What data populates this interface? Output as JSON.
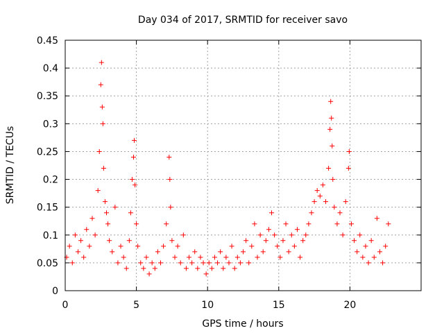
{
  "chart_data": {
    "type": "scatter",
    "title": "Day 034 of 2017, SRMTID for receiver savo",
    "xlabel": "GPS time / hours",
    "ylabel": "SRMTID / TECUs",
    "xlim": [
      0,
      25
    ],
    "ylim": [
      0,
      0.45
    ],
    "xticks": [
      0,
      5,
      10,
      15,
      20
    ],
    "xtick_labels": [
      "0",
      "5",
      "10",
      "15",
      "20"
    ],
    "yticks": [
      0,
      0.05,
      0.1,
      0.15,
      0.2,
      0.25,
      0.3,
      0.35,
      0.4,
      0.45
    ],
    "ytick_labels": [
      "0",
      "0.05",
      "0.1",
      "0.15",
      "0.2",
      "0.25",
      "0.3",
      "0.35",
      "0.4",
      "0.45"
    ],
    "grid": true,
    "marker": "+",
    "color": "#ff0000",
    "series": [
      {
        "name": "savo",
        "x": [
          0.1,
          0.3,
          0.5,
          0.7,
          0.9,
          1.1,
          1.3,
          1.5,
          1.7,
          1.9,
          2.1,
          2.3,
          2.4,
          2.5,
          2.55,
          2.6,
          2.65,
          2.7,
          2.8,
          2.9,
          3.0,
          3.1,
          3.3,
          3.5,
          3.7,
          3.9,
          4.1,
          4.3,
          4.5,
          4.6,
          4.7,
          4.8,
          4.85,
          4.9,
          5.0,
          5.1,
          5.3,
          5.5,
          5.7,
          5.9,
          6.1,
          6.3,
          6.5,
          6.7,
          6.9,
          7.1,
          7.3,
          7.35,
          7.4,
          7.5,
          7.7,
          7.9,
          8.1,
          8.3,
          8.5,
          8.7,
          8.9,
          9.1,
          9.3,
          9.5,
          9.7,
          9.9,
          10.1,
          10.3,
          10.5,
          10.7,
          10.9,
          11.1,
          11.3,
          11.5,
          11.7,
          11.9,
          12.1,
          12.3,
          12.5,
          12.7,
          12.9,
          13.1,
          13.3,
          13.5,
          13.7,
          13.9,
          14.1,
          14.3,
          14.5,
          14.7,
          14.9,
          15.1,
          15.3,
          15.5,
          15.7,
          15.9,
          16.1,
          16.3,
          16.5,
          16.7,
          16.9,
          17.1,
          17.3,
          17.5,
          17.7,
          17.9,
          18.1,
          18.3,
          18.5,
          18.6,
          18.65,
          18.7,
          18.75,
          18.8,
          18.9,
          19.1,
          19.3,
          19.5,
          19.7,
          19.9,
          19.95,
          20.1,
          20.3,
          20.5,
          20.7,
          20.9,
          21.1,
          21.3,
          21.5,
          21.7,
          21.9,
          22.1,
          22.3,
          22.5,
          22.7
        ],
        "y": [
          0.06,
          0.08,
          0.05,
          0.1,
          0.07,
          0.09,
          0.06,
          0.11,
          0.08,
          0.13,
          0.1,
          0.18,
          0.25,
          0.37,
          0.41,
          0.33,
          0.3,
          0.22,
          0.16,
          0.14,
          0.12,
          0.09,
          0.07,
          0.15,
          0.05,
          0.08,
          0.06,
          0.04,
          0.09,
          0.14,
          0.2,
          0.24,
          0.27,
          0.19,
          0.12,
          0.08,
          0.05,
          0.04,
          0.06,
          0.03,
          0.05,
          0.04,
          0.07,
          0.05,
          0.08,
          0.12,
          0.24,
          0.2,
          0.15,
          0.09,
          0.06,
          0.08,
          0.05,
          0.1,
          0.04,
          0.06,
          0.05,
          0.07,
          0.04,
          0.06,
          0.05,
          0.03,
          0.05,
          0.04,
          0.06,
          0.05,
          0.07,
          0.04,
          0.06,
          0.05,
          0.08,
          0.04,
          0.06,
          0.05,
          0.07,
          0.09,
          0.05,
          0.08,
          0.12,
          0.06,
          0.1,
          0.07,
          0.09,
          0.11,
          0.14,
          0.1,
          0.08,
          0.06,
          0.09,
          0.12,
          0.07,
          0.1,
          0.08,
          0.11,
          0.06,
          0.09,
          0.1,
          0.12,
          0.14,
          0.16,
          0.18,
          0.17,
          0.19,
          0.16,
          0.22,
          0.29,
          0.34,
          0.31,
          0.26,
          0.2,
          0.15,
          0.12,
          0.14,
          0.1,
          0.16,
          0.22,
          0.25,
          0.12,
          0.09,
          0.07,
          0.1,
          0.06,
          0.08,
          0.05,
          0.09,
          0.06,
          0.13,
          0.07,
          0.05,
          0.08,
          0.12
        ]
      }
    ]
  }
}
